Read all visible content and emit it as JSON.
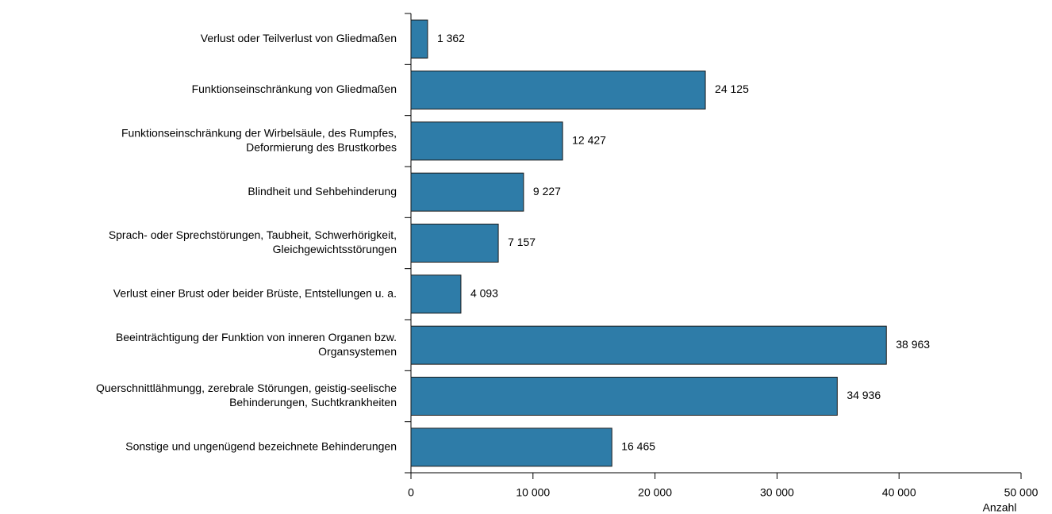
{
  "chart_data": {
    "type": "bar",
    "orientation": "horizontal",
    "x_label": "Anzahl",
    "categories": [
      [
        "Verlust oder Teilverlust von Gliedmaßen"
      ],
      [
        "Funktionseinschränkung von Gliedmaßen"
      ],
      [
        "Funktionseinschränkung der Wirbelsäule, des Rumpfes,",
        "Deformierung des Brustkorbes"
      ],
      [
        "Blindheit und Sehbehinderung"
      ],
      [
        "Sprach- oder Sprechstörungen, Taubheit, Schwerhörigkeit,",
        "Gleichgewichtsstörungen"
      ],
      [
        "Verlust einer Brust oder beider Brüste, Entstellungen u. a."
      ],
      [
        "Beeinträchtigung der Funktion von inneren Organen bzw.",
        "Organsystemen"
      ],
      [
        "Querschnittlähmungg, zerebrale Störungen, geistig-seelische",
        "Behinderungen, Suchtkrankheiten"
      ],
      [
        "Sonstige und ungenügend bezeichnete Behinderungen"
      ]
    ],
    "values": [
      1362,
      24125,
      12427,
      9227,
      7157,
      4093,
      38963,
      34936,
      16465
    ],
    "value_labels": [
      "1 362",
      "24 125",
      "12 427",
      "9 227",
      "7 157",
      "4 093",
      "38 963",
      "34 936",
      "16 465"
    ],
    "color": "#2e7ca8",
    "xlim": [
      0,
      50000
    ],
    "xticks": [
      0,
      {
        "value": 10000,
        "label": "10 000"
      },
      {
        "value": 20000,
        "label": "20 000"
      },
      {
        "value": 30000,
        "label": "30 000"
      },
      {
        "value": 40000,
        "label": "40 000"
      },
      {
        "value": 50000,
        "label": "50 000"
      }
    ]
  }
}
